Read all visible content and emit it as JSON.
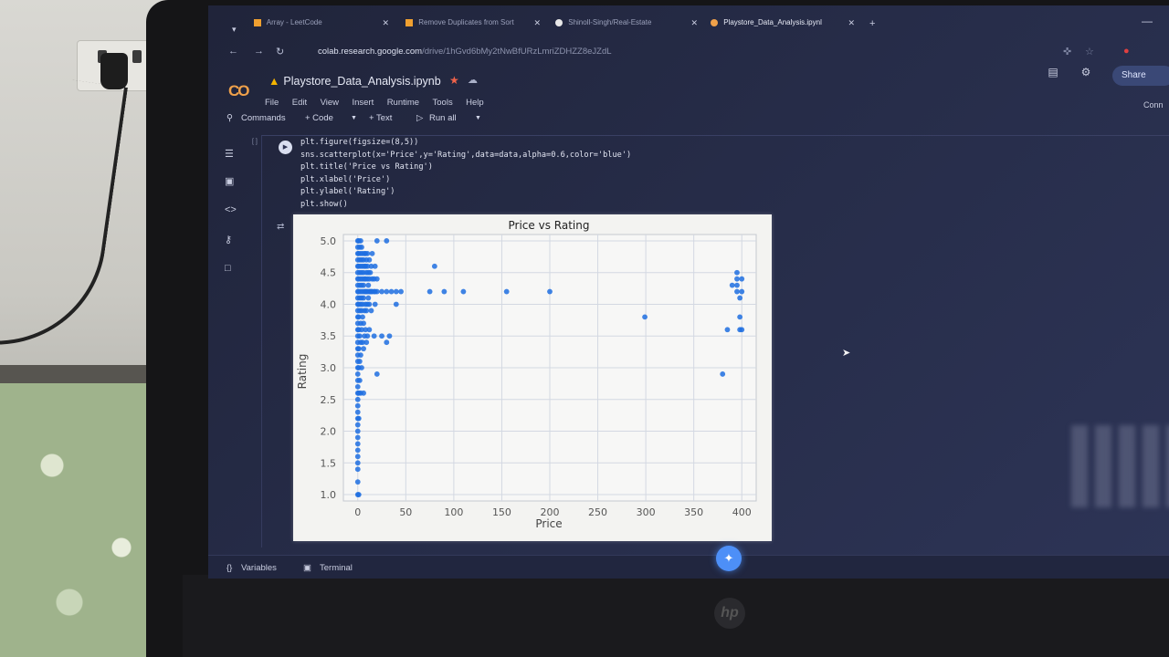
{
  "browser": {
    "tabs": [
      {
        "label": "Array - LeetCode",
        "active": false
      },
      {
        "label": "Remove Duplicates from Sort",
        "active": false
      },
      {
        "label": "Shinoll-Singh/Real-Estate",
        "active": false
      },
      {
        "label": "Playstore_Data_Analysis.ipynl",
        "active": true
      }
    ],
    "new_tab": "+",
    "url_host": "colab.research.google.com",
    "url_path": "/drive/1hGvd6bMy2tNwBfURzLmriZDHZZ8eJZdL"
  },
  "colab": {
    "logo_text": "CO",
    "notebook_title": "Playstore_Data_Analysis.ipynb",
    "menus": [
      "File",
      "Edit",
      "View",
      "Insert",
      "Runtime",
      "Tools",
      "Help"
    ],
    "share_label": "Share",
    "connect_label": "Conn"
  },
  "toolbar": {
    "commands_label": "Commands",
    "code_label": "+ Code",
    "text_label": "+ Text",
    "run_all_label": "Run all"
  },
  "cell": {
    "bracket": "[ ]",
    "code_lines": [
      "plt.figure(figsize=(8,5))",
      "sns.scatterplot(x='Price',y='Rating',data=data,alpha=0.6,color='blue')",
      "plt.title('Price vs Rating')",
      "plt.xlabel('Price')",
      "plt.ylabel('Rating')",
      "plt.show()"
    ]
  },
  "chart_data": {
    "type": "scatter",
    "title": "Price vs Rating",
    "xlabel": "Price",
    "ylabel": "Rating",
    "xlim": [
      -15,
      415
    ],
    "ylim": [
      0.9,
      5.1
    ],
    "xticks": [
      0,
      50,
      100,
      150,
      200,
      250,
      300,
      350,
      400
    ],
    "yticks": [
      1.0,
      1.5,
      2.0,
      2.5,
      3.0,
      3.5,
      4.0,
      4.5,
      5.0
    ],
    "grid": true,
    "color": "#1f6fe0",
    "points": [
      [
        0,
        1.0
      ],
      [
        0,
        1.2
      ],
      [
        0,
        1.4
      ],
      [
        0,
        1.5
      ],
      [
        0,
        1.6
      ],
      [
        0,
        1.7
      ],
      [
        0,
        1.8
      ],
      [
        0,
        1.9
      ],
      [
        0,
        2.0
      ],
      [
        0,
        2.1
      ],
      [
        0,
        2.2
      ],
      [
        0,
        2.3
      ],
      [
        0,
        2.4
      ],
      [
        0,
        2.5
      ],
      [
        0,
        2.6
      ],
      [
        0,
        2.7
      ],
      [
        0,
        2.8
      ],
      [
        0,
        2.9
      ],
      [
        0,
        3.0
      ],
      [
        0,
        3.1
      ],
      [
        0,
        3.2
      ],
      [
        0,
        3.3
      ],
      [
        0,
        3.4
      ],
      [
        0,
        3.5
      ],
      [
        0,
        3.6
      ],
      [
        0,
        3.7
      ],
      [
        0,
        3.8
      ],
      [
        0,
        3.9
      ],
      [
        0,
        4.0
      ],
      [
        0,
        4.1
      ],
      [
        0,
        4.2
      ],
      [
        0,
        4.3
      ],
      [
        0,
        4.4
      ],
      [
        0,
        4.5
      ],
      [
        0,
        4.6
      ],
      [
        0,
        4.7
      ],
      [
        0,
        4.8
      ],
      [
        0,
        4.9
      ],
      [
        0,
        5.0
      ],
      [
        1,
        1.0
      ],
      [
        1,
        2.2
      ],
      [
        1,
        2.6
      ],
      [
        1,
        3.0
      ],
      [
        1,
        3.3
      ],
      [
        1,
        3.6
      ],
      [
        1,
        3.8
      ],
      [
        1,
        4.0
      ],
      [
        1,
        4.2
      ],
      [
        1,
        4.4
      ],
      [
        1,
        4.6
      ],
      [
        1,
        4.8
      ],
      [
        1,
        5.0
      ],
      [
        2,
        2.8
      ],
      [
        2,
        3.1
      ],
      [
        2,
        3.5
      ],
      [
        2,
        3.9
      ],
      [
        2,
        4.1
      ],
      [
        2,
        4.3
      ],
      [
        2,
        4.5
      ],
      [
        2,
        4.7
      ],
      [
        2,
        4.9
      ],
      [
        3,
        2.6
      ],
      [
        3,
        3.2
      ],
      [
        3,
        3.4
      ],
      [
        3,
        3.7
      ],
      [
        3,
        4.0
      ],
      [
        3,
        4.2
      ],
      [
        3,
        4.4
      ],
      [
        3,
        4.6
      ],
      [
        3,
        4.8
      ],
      [
        3,
        5.0
      ],
      [
        4,
        3.0
      ],
      [
        4,
        3.6
      ],
      [
        4,
        3.9
      ],
      [
        4,
        4.1
      ],
      [
        4,
        4.3
      ],
      [
        4,
        4.5
      ],
      [
        4,
        4.7
      ],
      [
        4,
        4.9
      ],
      [
        5,
        3.4
      ],
      [
        5,
        3.8
      ],
      [
        5,
        4.0
      ],
      [
        5,
        4.2
      ],
      [
        5,
        4.4
      ],
      [
        5,
        4.6
      ],
      [
        5,
        4.8
      ],
      [
        6,
        2.6
      ],
      [
        6,
        3.3
      ],
      [
        6,
        3.7
      ],
      [
        6,
        4.1
      ],
      [
        6,
        4.3
      ],
      [
        6,
        4.5
      ],
      [
        6,
        4.7
      ],
      [
        7,
        3.5
      ],
      [
        7,
        3.9
      ],
      [
        7,
        4.2
      ],
      [
        7,
        4.4
      ],
      [
        7,
        4.6
      ],
      [
        7,
        4.8
      ],
      [
        8,
        3.6
      ],
      [
        8,
        4.0
      ],
      [
        8,
        4.2
      ],
      [
        8,
        4.4
      ],
      [
        8,
        4.6
      ],
      [
        8,
        4.8
      ],
      [
        9,
        3.4
      ],
      [
        9,
        3.9
      ],
      [
        9,
        4.2
      ],
      [
        9,
        4.5
      ],
      [
        9,
        4.7
      ],
      [
        10,
        3.5
      ],
      [
        10,
        4.0
      ],
      [
        10,
        4.2
      ],
      [
        10,
        4.4
      ],
      [
        10,
        4.6
      ],
      [
        10,
        4.8
      ],
      [
        11,
        4.1
      ],
      [
        11,
        4.3
      ],
      [
        11,
        4.5
      ],
      [
        12,
        3.6
      ],
      [
        12,
        4.0
      ],
      [
        12,
        4.2
      ],
      [
        12,
        4.4
      ],
      [
        12,
        4.7
      ],
      [
        13,
        4.2
      ],
      [
        13,
        4.5
      ],
      [
        14,
        3.9
      ],
      [
        14,
        4.2
      ],
      [
        14,
        4.6
      ],
      [
        15,
        4.2
      ],
      [
        15,
        4.4
      ],
      [
        15,
        4.8
      ],
      [
        17,
        3.5
      ],
      [
        17,
        4.2
      ],
      [
        17,
        4.4
      ],
      [
        18,
        4.0
      ],
      [
        18,
        4.2
      ],
      [
        18,
        4.6
      ],
      [
        20,
        2.9
      ],
      [
        20,
        4.2
      ],
      [
        20,
        4.4
      ],
      [
        20,
        5.0
      ],
      [
        25,
        3.5
      ],
      [
        25,
        4.2
      ],
      [
        30,
        3.4
      ],
      [
        30,
        4.2
      ],
      [
        30,
        5.0
      ],
      [
        33,
        3.5
      ],
      [
        35,
        4.2
      ],
      [
        40,
        4.0
      ],
      [
        40,
        4.2
      ],
      [
        45,
        4.2
      ],
      [
        75,
        4.2
      ],
      [
        80,
        4.6
      ],
      [
        90,
        4.2
      ],
      [
        110,
        4.2
      ],
      [
        155,
        4.2
      ],
      [
        200,
        4.2
      ],
      [
        299,
        3.8
      ],
      [
        380,
        2.9
      ],
      [
        385,
        3.6
      ],
      [
        390,
        4.3
      ],
      [
        395,
        4.2
      ],
      [
        395,
        4.4
      ],
      [
        395,
        4.5
      ],
      [
        395,
        4.3
      ],
      [
        398,
        4.1
      ],
      [
        398,
        3.8
      ],
      [
        398,
        3.6
      ],
      [
        400,
        3.6
      ],
      [
        400,
        4.2
      ],
      [
        400,
        4.4
      ]
    ]
  },
  "bottom": {
    "variables_label": "Variables",
    "terminal_label": "Terminal"
  }
}
